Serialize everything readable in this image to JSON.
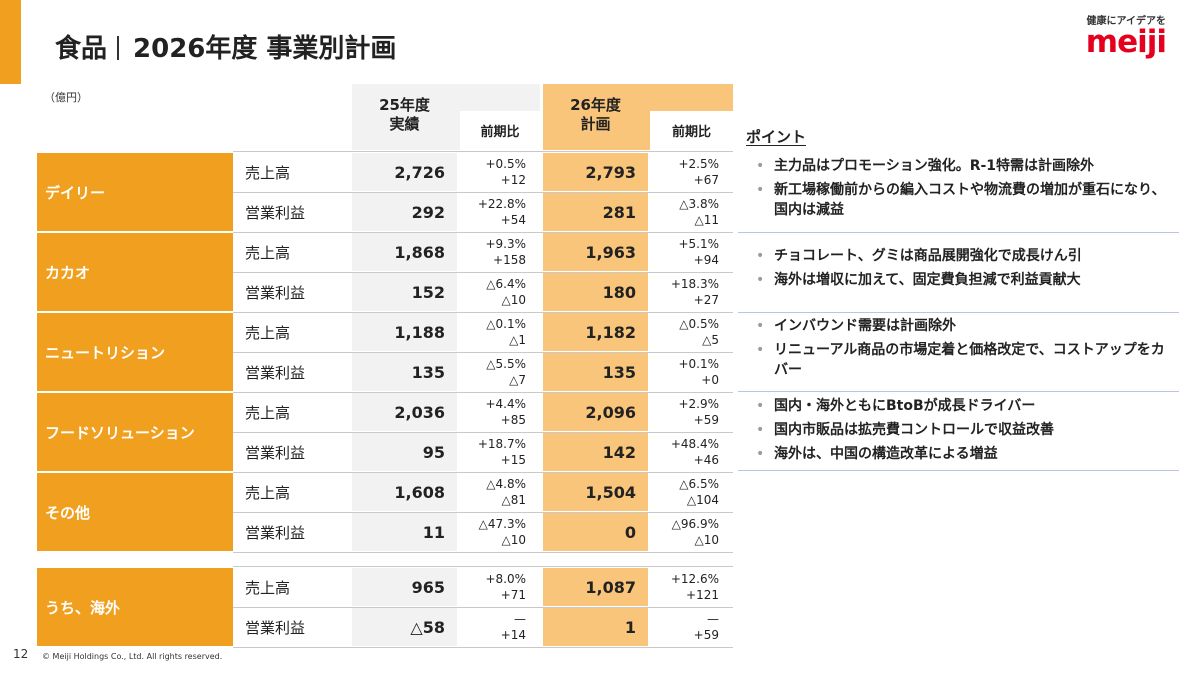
{
  "header": {
    "title_main": "食品",
    "title_sub": "2026年度 事業別計画"
  },
  "logo": {
    "tagline": "健康にアイデアを",
    "mark": "meiji"
  },
  "unit": "（億円）",
  "columns": {
    "fy25_line1": "25年度",
    "fy25_line2": "実績",
    "fy26_line1": "26年度",
    "fy26_line2": "計画",
    "yoy": "前期比"
  },
  "segments": [
    {
      "name": "デイリー",
      "rows": [
        {
          "label": "売上高",
          "fy25": "2,726",
          "yoy25_pct": "+0.5%",
          "yoy25_abs": "+12",
          "fy26": "2,793",
          "yoy26_pct": "+2.5%",
          "yoy26_abs": "+67"
        },
        {
          "label": "営業利益",
          "fy25": "292",
          "yoy25_pct": "+22.8%",
          "yoy25_abs": "+54",
          "fy26": "281",
          "yoy26_pct": "△3.8%",
          "yoy26_abs": "△11"
        }
      ]
    },
    {
      "name": "カカオ",
      "rows": [
        {
          "label": "売上高",
          "fy25": "1,868",
          "yoy25_pct": "+9.3%",
          "yoy25_abs": "+158",
          "fy26": "1,963",
          "yoy26_pct": "+5.1%",
          "yoy26_abs": "+94"
        },
        {
          "label": "営業利益",
          "fy25": "152",
          "yoy25_pct": "△6.4%",
          "yoy25_abs": "△10",
          "fy26": "180",
          "yoy26_pct": "+18.3%",
          "yoy26_abs": "+27"
        }
      ]
    },
    {
      "name": "ニュートリション",
      "rows": [
        {
          "label": "売上高",
          "fy25": "1,188",
          "yoy25_pct": "△0.1%",
          "yoy25_abs": "△1",
          "fy26": "1,182",
          "yoy26_pct": "△0.5%",
          "yoy26_abs": "△5"
        },
        {
          "label": "営業利益",
          "fy25": "135",
          "yoy25_pct": "△5.5%",
          "yoy25_abs": "△7",
          "fy26": "135",
          "yoy26_pct": "+0.1%",
          "yoy26_abs": "+0"
        }
      ]
    },
    {
      "name": "フードソリューション",
      "rows": [
        {
          "label": "売上高",
          "fy25": "2,036",
          "yoy25_pct": "+4.4%",
          "yoy25_abs": "+85",
          "fy26": "2,096",
          "yoy26_pct": "+2.9%",
          "yoy26_abs": "+59"
        },
        {
          "label": "営業利益",
          "fy25": "95",
          "yoy25_pct": "+18.7%",
          "yoy25_abs": "+15",
          "fy26": "142",
          "yoy26_pct": "+48.4%",
          "yoy26_abs": "+46"
        }
      ]
    },
    {
      "name": "その他",
      "rows": [
        {
          "label": "売上高",
          "fy25": "1,608",
          "yoy25_pct": "△4.8%",
          "yoy25_abs": "△81",
          "fy26": "1,504",
          "yoy26_pct": "△6.5%",
          "yoy26_abs": "△104"
        },
        {
          "label": "営業利益",
          "fy25": "11",
          "yoy25_pct": "△47.3%",
          "yoy25_abs": "△10",
          "fy26": "0",
          "yoy26_pct": "△96.9%",
          "yoy26_abs": "△10"
        }
      ]
    },
    {
      "name": "うち、海外",
      "rows": [
        {
          "label": "売上高",
          "fy25": "965",
          "yoy25_pct": "+8.0%",
          "yoy25_abs": "+71",
          "fy26": "1,087",
          "yoy26_pct": "+12.6%",
          "yoy26_abs": "+121"
        },
        {
          "label": "営業利益",
          "fy25": "△58",
          "yoy25_pct": "—",
          "yoy25_abs": "+14",
          "fy26": "1",
          "yoy26_pct": "—",
          "yoy26_abs": "+59"
        }
      ]
    }
  ],
  "points": {
    "title": "ポイント",
    "groups": [
      [
        "主力品はプロモーション強化。R-1特需は計画除外",
        "新工場稼働前からの編入コストや物流費の増加が重石になり、国内は減益"
      ],
      [
        "チョコレート、グミは商品展開強化で成長けん引",
        "海外は増収に加えて、固定費負担減で利益貢献大"
      ],
      [
        "インバウンド需要は計画除外",
        "リニューアル商品の市場定着と価格改定で、コストアップをカバー"
      ],
      [
        "国内・海外ともにBtoBが成長ドライバー",
        "国内市販品は拡売費コントロールで収益改善",
        "海外は、中国の構造改革による増益"
      ]
    ]
  },
  "footer": {
    "page": "12",
    "copyright": "© Meiji Holdings Co., Ltd. All rights reserved."
  }
}
